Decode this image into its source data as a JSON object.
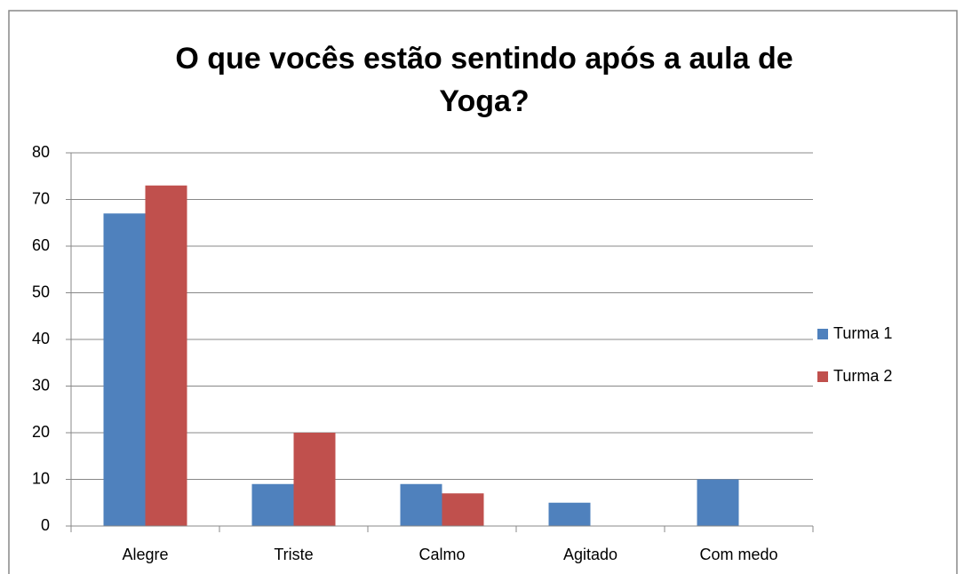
{
  "chart_data": {
    "type": "bar",
    "title": "O que vocês estão sentindo após a aula de Yoga?",
    "categories": [
      "Alegre",
      "Triste",
      "Calmo",
      "Agitado",
      "Com medo"
    ],
    "series": [
      {
        "name": "Turma 1",
        "color": "#4f81bd",
        "values": [
          67,
          9,
          9,
          5,
          10
        ]
      },
      {
        "name": "Turma 2",
        "color": "#c0504d",
        "values": [
          73,
          20,
          7,
          0,
          0
        ]
      }
    ],
    "ylim": [
      0,
      80
    ],
    "yticks": [
      0,
      10,
      20,
      30,
      40,
      50,
      60,
      70,
      80
    ],
    "grid": true,
    "legend": "right"
  }
}
